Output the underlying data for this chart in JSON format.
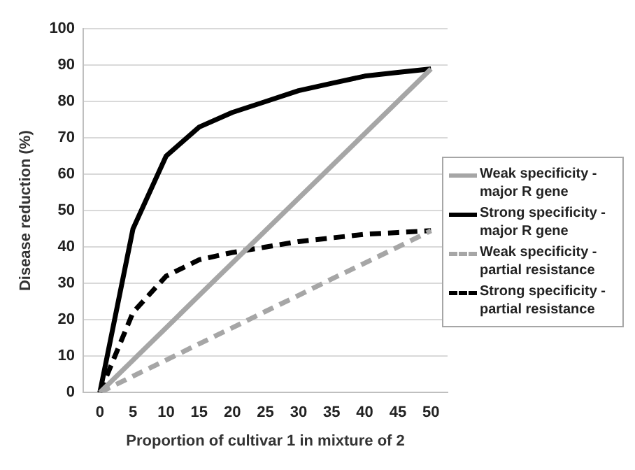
{
  "chart_data": {
    "type": "line",
    "xlabel": "Proportion of cultivar 1 in mixture of 2",
    "ylabel": "Disease reduction (%)",
    "categories": [
      "0",
      "5",
      "10",
      "15",
      "20",
      "25",
      "30",
      "35",
      "40",
      "45",
      "50"
    ],
    "series": [
      {
        "name": "Weak specificity - major R gene",
        "color": "#a6a6a6",
        "line_style": "solid",
        "values": [
          0,
          8.9,
          17.8,
          26.7,
          35.6,
          44.5,
          53.4,
          62.3,
          71.2,
          80.1,
          89
        ]
      },
      {
        "name": "Strong specificity - major R gene",
        "color": "#000000",
        "line_style": "solid",
        "values": [
          0,
          45,
          65,
          73,
          77,
          80,
          83,
          85,
          87,
          88,
          89
        ]
      },
      {
        "name": "Weak specificity - partial resistance",
        "color": "#a6a6a6",
        "line_style": "dashed",
        "values": [
          0,
          4.5,
          8.9,
          13.4,
          17.8,
          22.3,
          26.7,
          31.2,
          35.6,
          40,
          44.5
        ]
      },
      {
        "name": "Strong specificity - partial resistance",
        "color": "#000000",
        "line_style": "dashed",
        "values": [
          0,
          22,
          32,
          36.5,
          38.5,
          40,
          41.5,
          42.5,
          43.5,
          44,
          44.5
        ]
      }
    ],
    "ylim": [
      0,
      100
    ],
    "yticks": [
      0,
      10,
      20,
      30,
      40,
      50,
      60,
      70,
      80,
      90,
      100
    ],
    "grid": "y",
    "legend": "right",
    "marker": "none"
  }
}
